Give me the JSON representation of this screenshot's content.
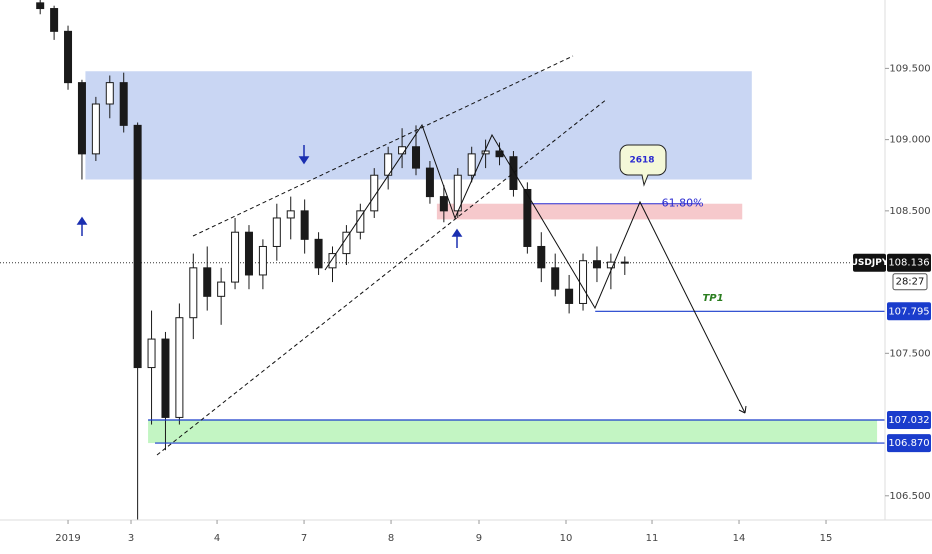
{
  "chart_data": {
    "type": "candlestick",
    "xlim": [
      -0.782,
      9.391
    ],
    "ylim": [
      106.33,
      109.98
    ],
    "xticks": [
      {
        "value": 0,
        "label": "2019"
      },
      {
        "value": 0.724,
        "label": "3"
      },
      {
        "value": 1.713,
        "label": "4"
      },
      {
        "value": 2.713,
        "label": "7"
      },
      {
        "value": 3.713,
        "label": "8"
      },
      {
        "value": 4.724,
        "label": "9"
      },
      {
        "value": 5.724,
        "label": "10"
      },
      {
        "value": 6.713,
        "label": "11"
      },
      {
        "value": 7.713,
        "label": "14"
      },
      {
        "value": 8.713,
        "label": "15"
      }
    ],
    "yticks": [
      {
        "value": 106.5,
        "label": "106.500"
      },
      {
        "value": 107.5,
        "label": "107.500"
      },
      {
        "value": 108.5,
        "label": "108.500"
      },
      {
        "value": 109,
        "label": "109.000"
      },
      {
        "value": 109.5,
        "label": "109.500"
      }
    ],
    "up_color": "#ffffff",
    "down_color": "#1a1a1a",
    "x": [
      -0.32,
      -0.16,
      0,
      0.16,
      0.32,
      0.48,
      0.64,
      0.8,
      0.96,
      1.12,
      1.28,
      1.44,
      1.6,
      1.76,
      1.92,
      2.08,
      2.24,
      2.4,
      2.56,
      2.72,
      2.88,
      3.04,
      3.2,
      3.36,
      3.52,
      3.68,
      3.84,
      4,
      4.16,
      4.32,
      4.48,
      4.64,
      4.8,
      4.96,
      5.12,
      5.28,
      5.44,
      5.6,
      5.76,
      5.92,
      6.08,
      6.24,
      6.4
    ],
    "open": [
      109.96,
      109.92,
      109.76,
      109.4,
      108.9,
      109.25,
      109.4,
      109.1,
      107.4,
      107.6,
      107.05,
      107.75,
      108.1,
      107.9,
      108,
      108.35,
      108.05,
      108.25,
      108.45,
      108.5,
      108.3,
      108.1,
      108.2,
      108.35,
      108.5,
      108.75,
      108.9,
      108.95,
      108.8,
      108.6,
      108.5,
      108.75,
      108.9,
      108.92,
      108.88,
      108.65,
      108.25,
      108.1,
      107.95,
      107.85,
      108.15,
      108.1,
      108.14
    ],
    "high": [
      109.98,
      109.94,
      109.8,
      109.42,
      109.3,
      109.45,
      109.47,
      109.12,
      107.8,
      107.65,
      107.85,
      108.2,
      108.25,
      108.1,
      108.45,
      108.4,
      108.3,
      108.55,
      108.6,
      108.58,
      108.35,
      108.25,
      108.4,
      108.55,
      108.8,
      108.95,
      109.08,
      109.1,
      108.85,
      108.68,
      108.8,
      108.95,
      109,
      108.98,
      108.92,
      108.7,
      108.35,
      108.2,
      108.05,
      108.2,
      108.25,
      108.2,
      108.18
    ],
    "low": [
      109.88,
      109.7,
      109.35,
      108.72,
      108.85,
      109.15,
      109.05,
      106.33,
      107,
      106.82,
      107,
      107.6,
      107.8,
      107.7,
      107.95,
      107.95,
      107.95,
      108.15,
      108.3,
      108.2,
      108.05,
      108,
      108.12,
      108.3,
      108.45,
      108.65,
      108.8,
      108.75,
      108.55,
      108.42,
      108.45,
      108.7,
      108.8,
      108.82,
      108.6,
      108.2,
      108,
      107.9,
      107.78,
      107.8,
      108,
      107.95,
      108.05
    ],
    "close": [
      109.92,
      109.76,
      109.4,
      108.9,
      109.25,
      109.4,
      109.1,
      107.4,
      107.6,
      107.05,
      107.75,
      108.1,
      107.9,
      108,
      108.35,
      108.05,
      108.25,
      108.45,
      108.5,
      108.3,
      108.1,
      108.2,
      108.35,
      108.5,
      108.75,
      108.9,
      108.95,
      108.8,
      108.6,
      108.5,
      108.75,
      108.9,
      108.92,
      108.88,
      108.65,
      108.25,
      108.1,
      107.95,
      107.85,
      108.15,
      108.1,
      108.14,
      108.136
    ],
    "zones": [
      {
        "x": [
          0.2,
          7.86
        ],
        "y": [
          108.72,
          109.48
        ],
        "color": "#c9d6f3"
      },
      {
        "x": [
          4.24,
          7.75
        ],
        "y": [
          108.44,
          108.55
        ],
        "color": "#f6c9cc"
      },
      {
        "x": [
          0.92,
          9.3
        ],
        "y": [
          106.87,
          107.032
        ],
        "color": "#c3f5c3"
      }
    ],
    "fib": {
      "label": "61.80%",
      "value": 108.55,
      "x": [
        5.25,
        7.26
      ],
      "color": "#2a2ad0"
    },
    "last_price": {
      "value": 108.136,
      "symbol": "USDJPY",
      "countdown": "28:27"
    },
    "price_lines": [
      {
        "value": 107.795,
        "x_start": 6.06,
        "color": "#1a3ccc"
      },
      {
        "value": 107.032,
        "x_start": 0.92,
        "color": "#1a3ccc"
      },
      {
        "value": 106.87,
        "label": "106.870",
        "x_start": 1.0,
        "color": "#1a3ccc"
      }
    ],
    "annotations": {
      "bubble": "2618",
      "target": "TP1"
    }
  }
}
